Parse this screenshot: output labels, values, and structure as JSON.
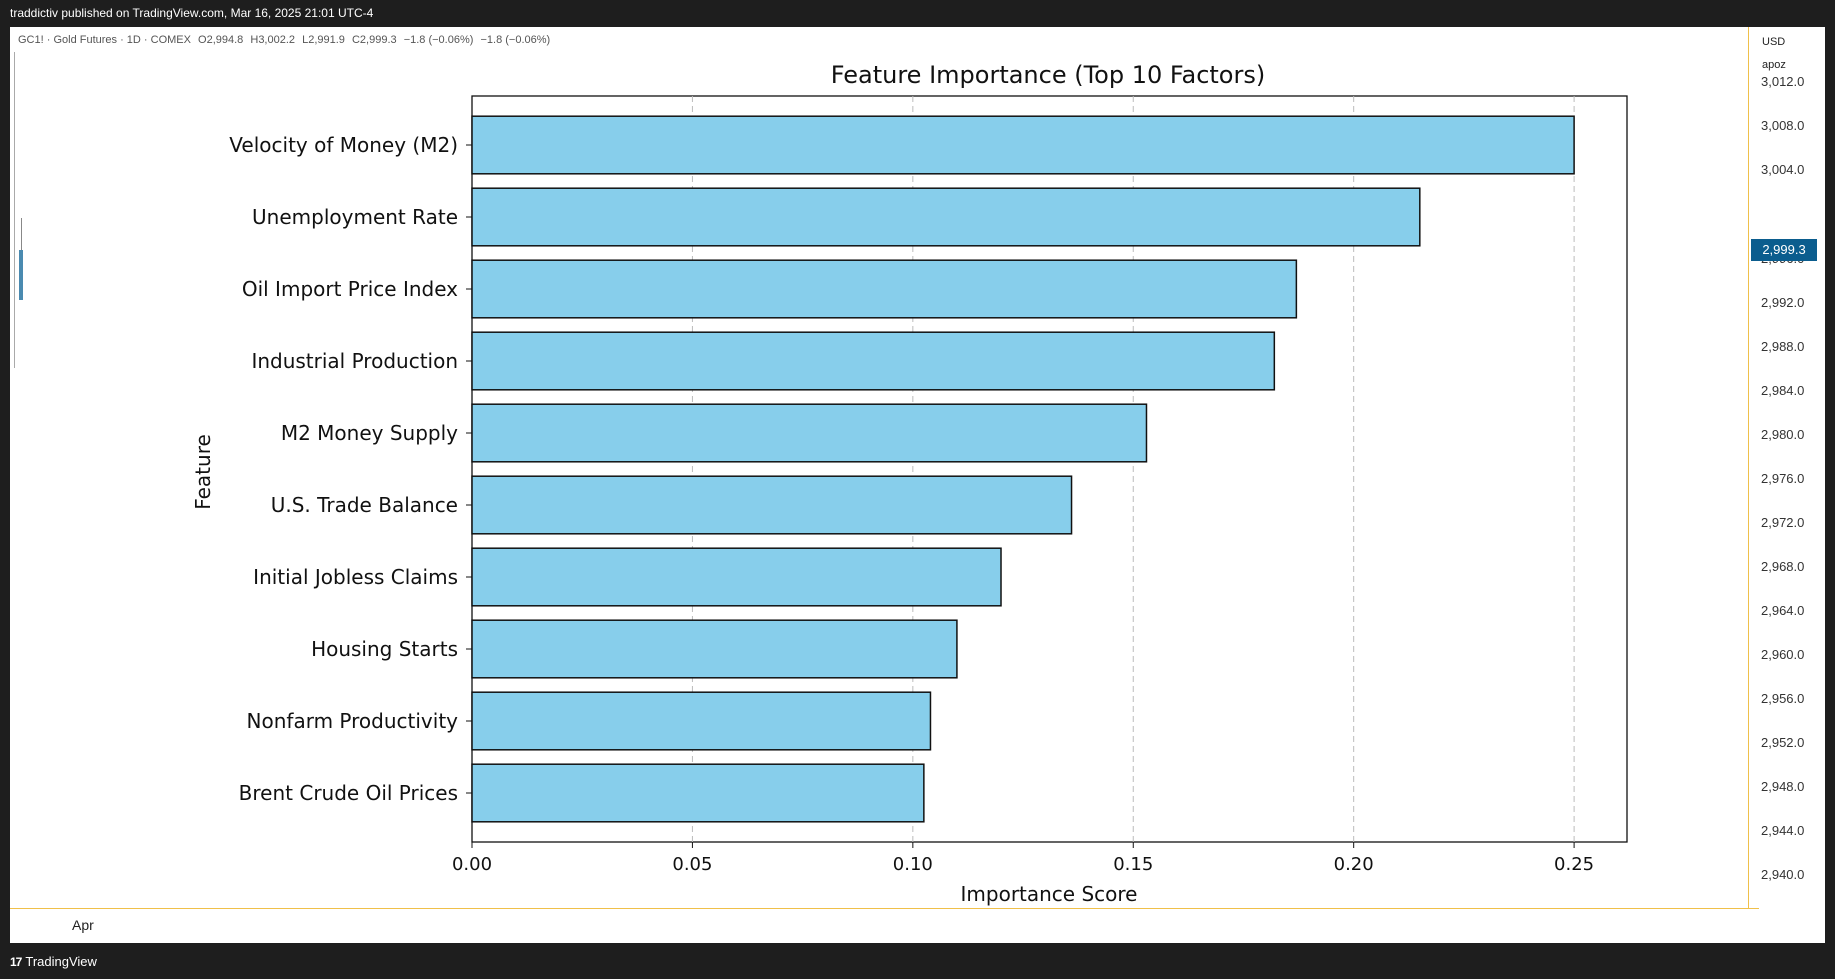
{
  "header": {
    "published": "traddictiv published on TradingView.com, Mar 16, 2025 21:01 UTC-4"
  },
  "symbol": {
    "name": "GC1! · Gold Futures · 1D · COMEX",
    "open": "O2,994.8",
    "high": "H3,002.2",
    "low": "L2,991.9",
    "close": "C2,999.3",
    "change": "−1.8 (−0.06%)",
    "change2": "−1.8 (−0.06%)"
  },
  "price_scale": {
    "currency": "USD",
    "label": "apoz",
    "ticks": [
      "3,012.0",
      "3,008.0",
      "3,004.0",
      "2,996.0",
      "2,992.0",
      "2,988.0",
      "2,984.0",
      "2,980.0",
      "2,976.0",
      "2,972.0",
      "2,968.0",
      "2,964.0",
      "2,960.0",
      "2,956.0",
      "2,952.0",
      "2,948.0",
      "2,944.0",
      "2,940.0"
    ],
    "current_price": "2,999.3",
    "badge_color": "#0b5d8e"
  },
  "time_axis": {
    "label": "Apr"
  },
  "footer": {
    "brand": "TradingView"
  },
  "chart_data": {
    "type": "bar",
    "orientation": "horizontal",
    "title": "Feature Importance (Top 10 Factors)",
    "xlabel": "Importance Score",
    "ylabel": "Feature",
    "categories": [
      "Velocity of Money (M2)",
      "Unemployment Rate",
      "Oil Import Price Index",
      "Industrial Production",
      "M2 Money Supply",
      "U.S. Trade Balance",
      "Initial Jobless Claims",
      "Housing Starts",
      "Nonfarm Productivity",
      "Brent Crude Oil Prices"
    ],
    "values": [
      0.25,
      0.215,
      0.187,
      0.182,
      0.153,
      0.136,
      0.12,
      0.11,
      0.104,
      0.1025
    ],
    "xlim": [
      0,
      0.262
    ],
    "xticks": [
      "0.00",
      "0.05",
      "0.10",
      "0.15",
      "0.20",
      "0.25"
    ],
    "grid": "x-dashed",
    "bar_color": "#87ceeb",
    "edge_color": "#111111"
  }
}
